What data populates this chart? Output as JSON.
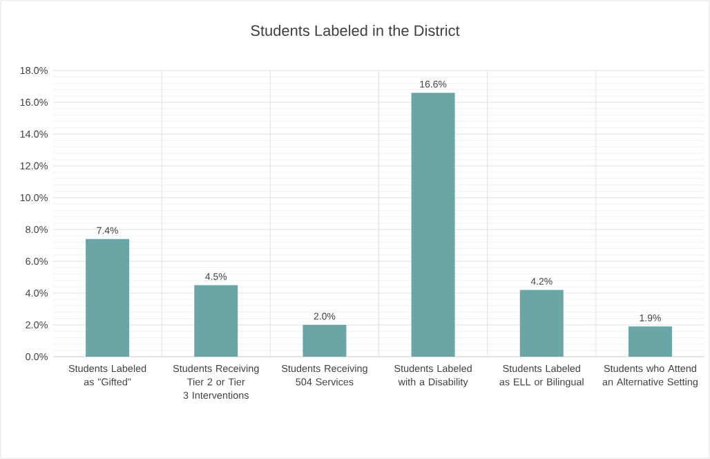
{
  "chart_data": {
    "type": "bar",
    "title": "Students Labeled in the District",
    "categories": [
      "Students Labeled as \"Gifted\"",
      "Students Receiving Tier 2 or Tier 3 Interventions",
      "Students Receiving 504 Services",
      "Students Labeled with a Disability",
      "Students Labeled as ELL or Bilingual",
      "Students who Attend an Alternative Setting"
    ],
    "values": [
      7.4,
      4.5,
      2.0,
      16.6,
      4.2,
      1.9
    ],
    "value_labels": [
      "7.4%",
      "4.5%",
      "2.0%",
      "16.6%",
      "4.2%",
      "1.9%"
    ],
    "color": "#6aa6a6",
    "ylim": [
      0,
      18
    ],
    "yticks": [
      {
        "value": 0,
        "label": "0.0%"
      },
      {
        "value": 2,
        "label": "2.0%"
      },
      {
        "value": 4,
        "label": "4.0%"
      },
      {
        "value": 6,
        "label": "6.0%"
      },
      {
        "value": 8,
        "label": "8.0%"
      },
      {
        "value": 10,
        "label": "10.0%"
      },
      {
        "value": 12,
        "label": "12.0%"
      },
      {
        "value": 14,
        "label": "14.0%"
      },
      {
        "value": 16,
        "label": "16.0%"
      },
      {
        "value": 18,
        "label": "18.0%"
      }
    ],
    "grid": true
  }
}
